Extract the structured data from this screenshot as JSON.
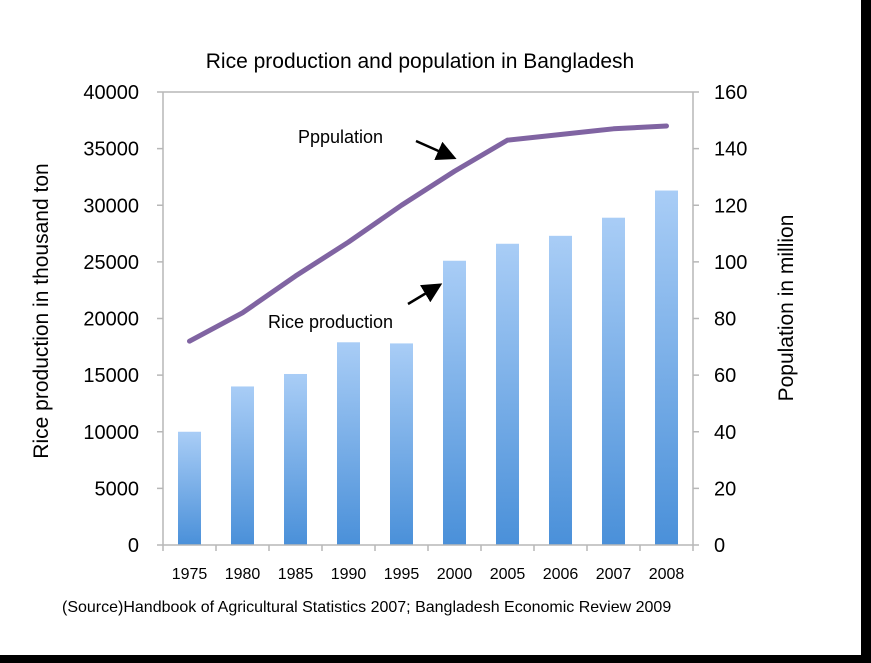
{
  "chart_data": {
    "type": "bar",
    "title": "Rice production and population in Bangladesh",
    "categories": [
      "1975",
      "1980",
      "1985",
      "1990",
      "1995",
      "2000",
      "2005",
      "2006",
      "2007",
      "2008"
    ],
    "series": [
      {
        "name": "Rice production",
        "type": "bar",
        "axis": "left",
        "values": [
          10000,
          14000,
          15100,
          17900,
          17800,
          25100,
          26600,
          27300,
          28900,
          31300
        ]
      },
      {
        "name": "Pppulation",
        "type": "line",
        "axis": "right",
        "values": [
          72,
          82,
          95,
          107,
          120,
          132,
          143,
          145,
          147,
          148
        ]
      }
    ],
    "ylabel_left": "Rice production in thousand ton",
    "ylabel_right": "Population in million",
    "ylim_left": [
      0,
      40000
    ],
    "ylim_right": [
      0,
      160
    ],
    "yticks_left": [
      "0",
      "5000",
      "10000",
      "15000",
      "20000",
      "25000",
      "30000",
      "35000",
      "40000"
    ],
    "yticks_right": [
      "0",
      "20",
      "40",
      "60",
      "80",
      "100",
      "120",
      "140",
      "160"
    ],
    "annotations": [
      {
        "text": "Pppulation",
        "points_to": "Pppulation"
      },
      {
        "text": "Rice production",
        "points_to": "Rice production"
      }
    ],
    "source": "(Source)Handbook of Agricultural Statistics 2007; Bangladesh Economic Review 2009",
    "grid": false,
    "legend": "none",
    "colors": {
      "bar_top": "#a9cdf6",
      "bar_bottom": "#4a90d9",
      "line": "#8064a2",
      "axis": "#b7b7b7"
    }
  }
}
